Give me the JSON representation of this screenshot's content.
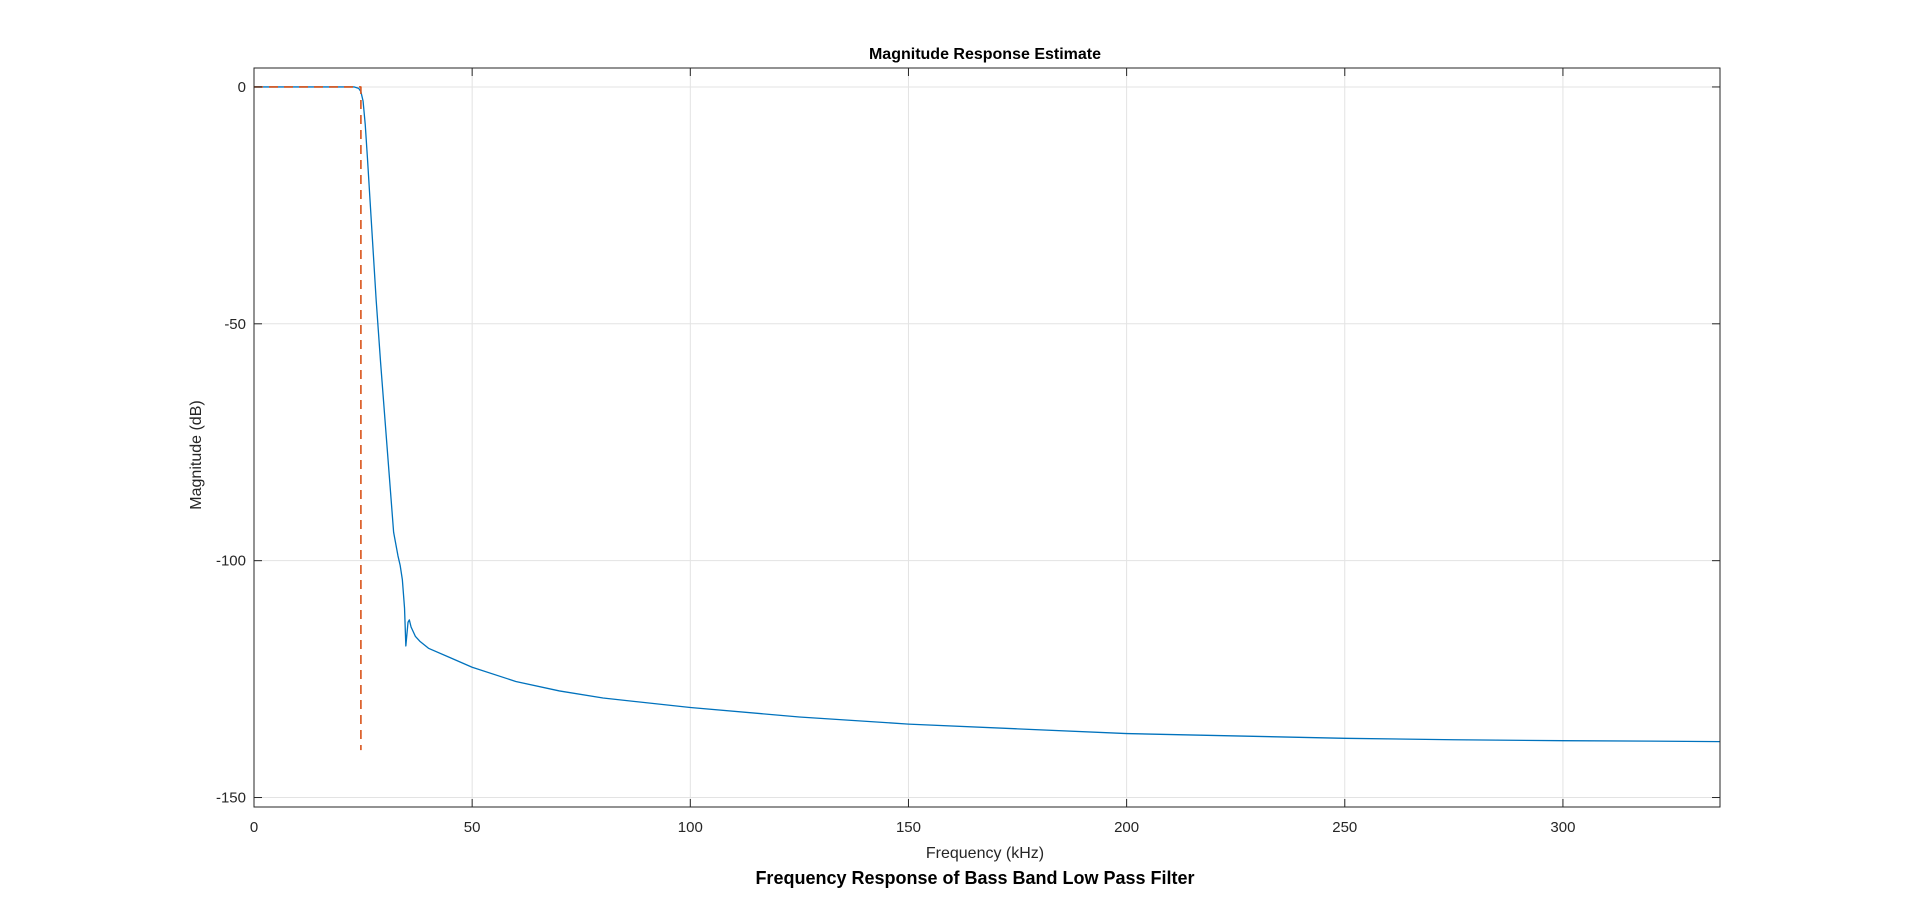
{
  "figure": {
    "caption": "Frequency Response of Bass Band Low Pass Filter"
  },
  "chart_data": {
    "type": "line",
    "title": "Magnitude Response Estimate",
    "xlabel": "Frequency (kHz)",
    "ylabel": "Magnitude (dB)",
    "xlim": [
      0,
      336
    ],
    "ylim": [
      -152,
      4
    ],
    "xticks": [
      0,
      50,
      100,
      150,
      200,
      250,
      300
    ],
    "yticks": [
      0,
      -50,
      -100,
      -150
    ],
    "xtick_labels": [
      "0",
      "50",
      "100",
      "150",
      "200",
      "250",
      "300"
    ],
    "ytick_labels": [
      "0",
      "-50",
      "-100",
      "-150"
    ],
    "grid": true,
    "series": [
      {
        "color": "#0072BD",
        "style": "solid",
        "x": [
          0,
          20,
          23,
          24,
          24.5,
          25,
          25.5,
          26,
          27,
          28,
          29,
          30,
          31,
          32,
          33,
          33.5,
          34,
          34.5,
          34.8,
          35,
          35.3,
          35.6,
          36,
          36.5,
          37,
          38,
          40,
          45,
          50,
          60,
          70,
          80,
          100,
          125,
          150,
          175,
          200,
          225,
          250,
          275,
          300,
          320,
          336
        ],
        "y": [
          0,
          0,
          0,
          -0.3,
          -1,
          -3,
          -8,
          -15,
          -30,
          -45,
          -58,
          -70,
          -82,
          -94,
          -99,
          -101,
          -104,
          -110,
          -118,
          -116,
          -113,
          -112.5,
          -114,
          -115,
          -116,
          -117,
          -118.5,
          -120.5,
          -122.5,
          -125.5,
          -127.5,
          -129,
          -131,
          -133,
          -134.5,
          -135.5,
          -136.5,
          -137,
          -137.5,
          -137.8,
          -138,
          -138.1,
          -138.2
        ]
      },
      {
        "color": "#D95319",
        "style": "dashed",
        "x": [
          0,
          24.5,
          24.5
        ],
        "y": [
          0,
          0,
          -140
        ]
      }
    ]
  }
}
